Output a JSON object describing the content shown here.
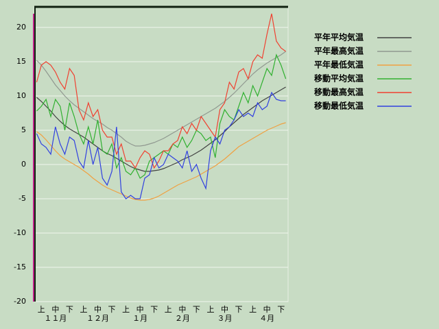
{
  "chart_data": {
    "type": "line",
    "categories": [
      null,
      "上",
      null,
      null,
      "中",
      null,
      null,
      "下",
      null,
      null,
      "上",
      null,
      null,
      "中",
      null,
      null,
      "下",
      null,
      null,
      "上",
      null,
      null,
      "中",
      null,
      null,
      "下",
      null,
      null,
      "上",
      null,
      null,
      "中",
      null,
      null,
      "下",
      null,
      null,
      "上",
      null,
      null,
      "中",
      null,
      null,
      "下",
      null,
      null,
      "上",
      null,
      null,
      "中",
      null,
      null,
      "下",
      null
    ],
    "months": [
      "１１月",
      "１２月",
      "１月",
      "２月",
      "３月",
      "４月"
    ],
    "ylim": [
      -20,
      23
    ],
    "yticks": [
      -20,
      -15,
      -10,
      -5,
      0,
      5,
      10,
      15,
      20
    ],
    "grid": true,
    "series": [
      {
        "name": "平年平均気温",
        "color": "#404040",
        "values": [
          9.8,
          9.2,
          8.5,
          7.8,
          7.0,
          6.3,
          5.7,
          5.2,
          4.8,
          4.4,
          4.0,
          3.5,
          3.0,
          2.5,
          2.0,
          1.6,
          1.3,
          0.9,
          0.5,
          0.1,
          -0.3,
          -0.6,
          -0.8,
          -1.0,
          -1.0,
          -0.9,
          -0.8,
          -0.6,
          -0.3,
          0.0,
          0.3,
          0.7,
          1.0,
          1.3,
          1.7,
          2.1,
          2.6,
          3.1,
          3.6,
          4.2,
          4.8,
          5.5,
          6.1,
          6.7,
          7.3,
          7.8,
          8.3,
          8.8,
          9.3,
          9.7,
          10.1,
          10.5,
          10.9,
          11.3
        ]
      },
      {
        "name": "平年最高気温",
        "color": "#909890",
        "values": [
          15.2,
          14.5,
          13.6,
          12.6,
          11.6,
          10.8,
          10.0,
          9.3,
          8.7,
          8.2,
          7.7,
          7.2,
          6.7,
          6.3,
          5.9,
          5.4,
          5.0,
          4.5,
          4.0,
          3.4,
          3.0,
          2.7,
          2.7,
          2.8,
          3.0,
          3.2,
          3.5,
          3.8,
          4.2,
          4.6,
          5.0,
          5.4,
          5.8,
          6.2,
          6.6,
          7.0,
          7.4,
          7.8,
          8.2,
          8.7,
          9.2,
          9.8,
          10.4,
          11.1,
          11.8,
          12.5,
          13.2,
          13.8,
          14.3,
          14.8,
          15.2,
          15.6,
          16.0,
          16.5
        ]
      },
      {
        "name": "平年最低気温",
        "color": "#f0a040",
        "values": [
          4.8,
          4.3,
          3.6,
          2.8,
          2.0,
          1.3,
          0.8,
          0.4,
          0.0,
          -0.4,
          -0.9,
          -1.4,
          -2.0,
          -2.5,
          -3.0,
          -3.4,
          -3.7,
          -4.0,
          -4.3,
          -4.6,
          -4.9,
          -5.1,
          -5.2,
          -5.2,
          -5.1,
          -4.9,
          -4.6,
          -4.2,
          -3.8,
          -3.4,
          -3.0,
          -2.7,
          -2.4,
          -2.1,
          -1.8,
          -1.4,
          -1.0,
          -0.6,
          -0.2,
          0.3,
          0.8,
          1.4,
          2.0,
          2.6,
          3.0,
          3.4,
          3.8,
          4.2,
          4.6,
          5.0,
          5.3,
          5.6,
          5.9,
          6.1
        ]
      },
      {
        "name": "移動平均気温",
        "color": "#30b030",
        "values": [
          7.8,
          8.5,
          9.5,
          7.0,
          9.5,
          8.5,
          5.0,
          9.0,
          7.0,
          4.5,
          3.0,
          5.5,
          3.0,
          6.5,
          2.0,
          1.5,
          3.0,
          -0.5,
          1.0,
          -1.0,
          -1.5,
          -0.5,
          -2.0,
          -1.5,
          0.5,
          1.0,
          1.5,
          2.0,
          1.5,
          3.0,
          2.5,
          4.0,
          2.5,
          3.5,
          5.0,
          4.5,
          3.5,
          4.0,
          1.0,
          6.0,
          8.0,
          7.0,
          6.5,
          8.5,
          10.5,
          9.0,
          11.5,
          10.0,
          12.0,
          14.0,
          13.0,
          16.0,
          14.5,
          12.5
        ]
      },
      {
        "name": "移動最高気温",
        "color": "#f04030",
        "values": [
          12,
          14.5,
          15,
          14.5,
          13.5,
          12,
          11,
          14,
          13,
          8,
          6.5,
          9,
          7,
          8,
          5,
          4,
          4,
          1.5,
          3,
          0.5,
          0.5,
          -0.5,
          1,
          2,
          1.5,
          -0.5,
          0.5,
          2,
          2,
          3,
          3.5,
          5.5,
          4.5,
          6,
          5,
          7,
          6,
          5,
          4,
          8,
          9,
          12,
          11,
          13.5,
          14,
          12.5,
          15,
          16,
          15.5,
          19,
          22,
          18,
          17,
          16.5
        ]
      },
      {
        "name": "移動最低気温",
        "color": "#3040e0",
        "values": [
          4.5,
          3.0,
          2.5,
          1.5,
          5.5,
          3.0,
          1.5,
          4.0,
          3.5,
          0.5,
          -0.5,
          3.5,
          0,
          2.5,
          -2,
          -3,
          -1,
          5.5,
          -4,
          -5,
          -4.5,
          -5,
          -5,
          -2,
          -1.5,
          1,
          -0.5,
          0,
          1.5,
          1,
          0.5,
          -0.5,
          2,
          -1,
          0,
          -2,
          -3.5,
          2,
          4,
          3,
          5,
          5.5,
          6.5,
          8,
          7,
          7.5,
          7,
          9,
          8,
          8.5,
          10.5,
          9.5,
          9.3,
          9.3
        ]
      }
    ]
  }
}
